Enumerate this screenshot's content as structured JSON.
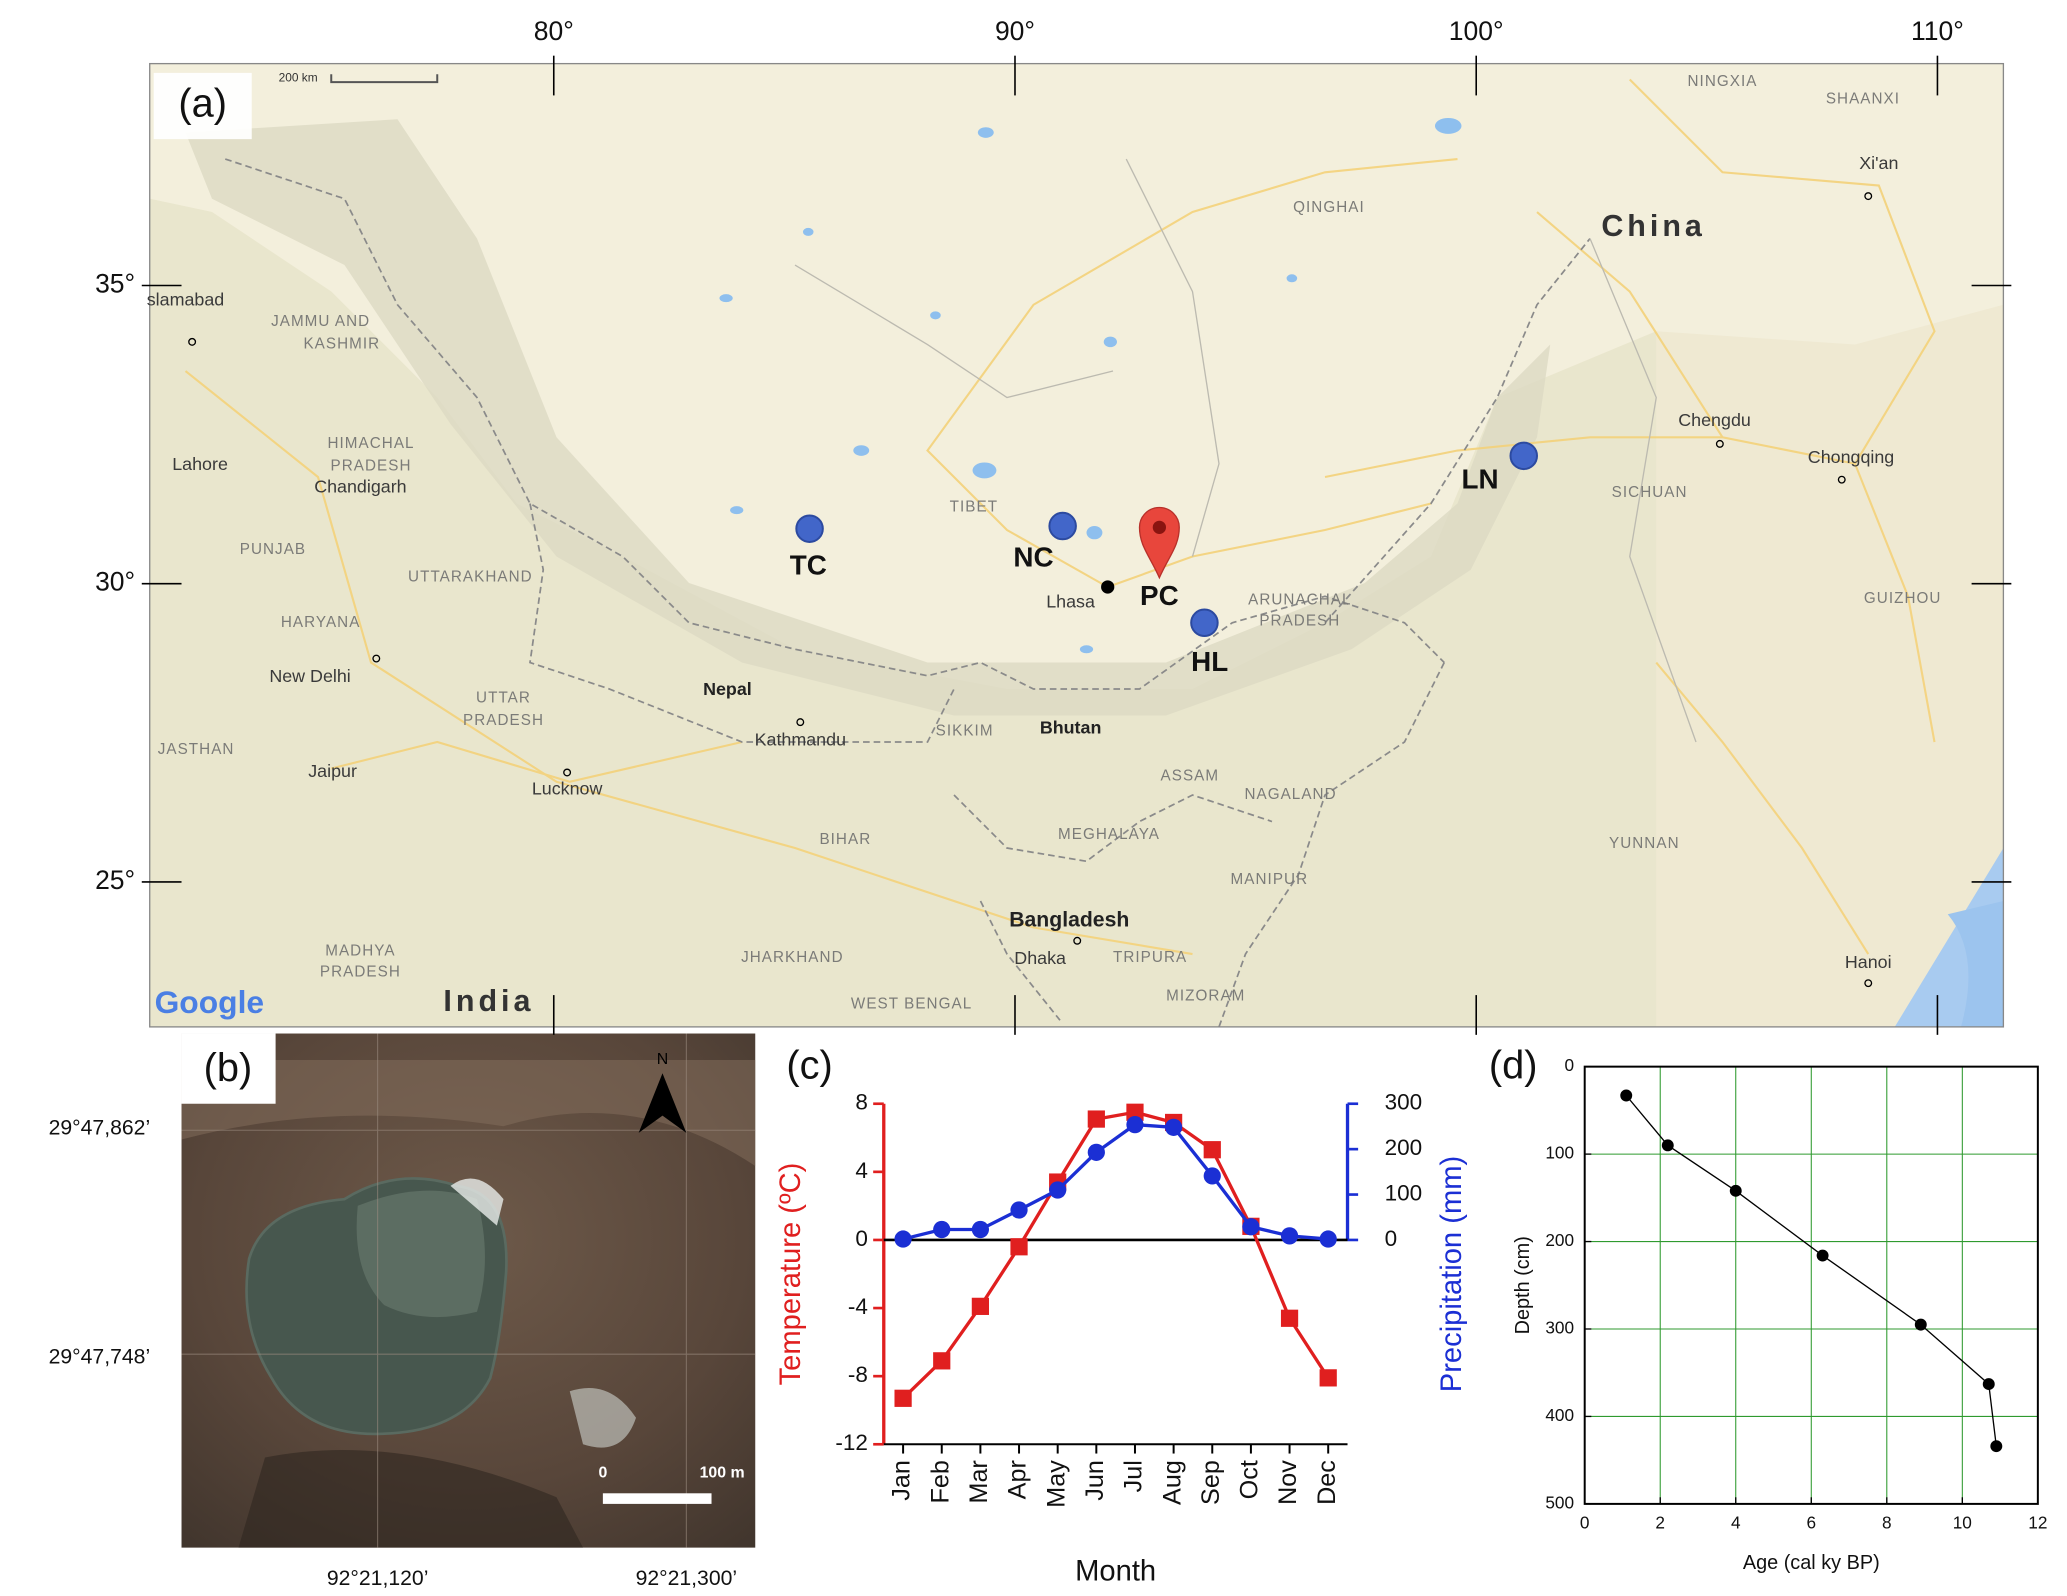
{
  "map_a": {
    "panel_label": "(a)",
    "scale_label": "200 km",
    "attribution": "Google",
    "xlim": [
      71.24,
      111.43
    ],
    "ylim": [
      22.57,
      38.72
    ],
    "xticks": [
      {
        "value": 80,
        "label": "80°"
      },
      {
        "value": 90,
        "label": "90°"
      },
      {
        "value": 100,
        "label": "100°"
      },
      {
        "value": 110,
        "label": "110°"
      }
    ],
    "yticks": [
      {
        "value": 25,
        "label": "25°"
      },
      {
        "value": 30,
        "label": "30°"
      },
      {
        "value": 35,
        "label": "35°"
      }
    ],
    "places": [
      "China",
      "India",
      "QINGHAI",
      "NINGXIA",
      "SHAANXI",
      "Xi'an",
      "TIBET",
      "Chengdu",
      "SICHUAN",
      "Chongqing",
      "GUIZHOU",
      "YUNNAN",
      "Hanoi",
      "slamabad",
      "JAMMU AND",
      "KASHMIR",
      "Lahore",
      "HIMACHAL",
      "PRADESH",
      "Chandigarh",
      "PUNJAB",
      "UTTARAKHAND",
      "HARYANA",
      "New Delhi",
      "UTTAR",
      "PRADESH",
      "JASTHAN",
      "Jaipur",
      "Lucknow",
      "Nepal",
      "Kathmandu",
      "SIKKIM",
      "Bhutan",
      "ARUNACHAL",
      "PRADESH",
      "ASSAM",
      "NAGALAND",
      "BIHAR",
      "MEGHALAYA",
      "MANIPUR",
      "Bangladesh",
      "Dhaka",
      "TRIPURA",
      "MIZORAM",
      "JHARKHAND",
      "WEST BENGAL",
      "MADHYA",
      "PRADESH",
      "Lhasa"
    ],
    "sites": [
      "TC",
      "NC",
      "PC",
      "HL",
      "LN"
    ]
  },
  "image_b": {
    "panel_label": "(b)",
    "north_label": "N",
    "scale_zero": "0",
    "scale_label": "100 m",
    "lat_labels": [
      "29°47,862’",
      "29°47,748’"
    ],
    "lon_labels": [
      "92°21,120’",
      "92°21,300’"
    ]
  },
  "chart_data": [
    {
      "type": "line",
      "panel_label": "(c)",
      "categories": [
        "Jan",
        "Feb",
        "Mar",
        "Apr",
        "May",
        "Jun",
        "Jul",
        "Aug",
        "Sep",
        "Oct",
        "Nov",
        "Dec"
      ],
      "x_label": "Month",
      "y_label": "Temperature (ºC)",
      "y2_label": "Precipitation (mm)",
      "ylim": [
        -12,
        8
      ],
      "yticks": [
        -12,
        -8,
        -4,
        0,
        4,
        8
      ],
      "y2lim": [
        -450,
        300
      ],
      "y2ticks": [
        0,
        100,
        200,
        300
      ],
      "series": [
        {
          "color": "#e01f1f",
          "marker": "square",
          "values": [
            -9.3,
            -7.1,
            -3.9,
            -0.4,
            3.4,
            7.1,
            7.5,
            6.9,
            5.3,
            0.8,
            -4.6,
            -8.1
          ]
        },
        {
          "color": "#1b2fd4",
          "marker": "circle",
          "axis": "y2",
          "values": [
            2,
            23,
            23,
            66,
            110,
            193,
            254,
            248,
            141,
            29,
            9,
            2
          ]
        }
      ]
    },
    {
      "type": "scatter",
      "panel_label": "(d)",
      "x_label": "Age (cal ky BP)",
      "y_label": "Depth (cm)",
      "xlim": [
        0,
        12
      ],
      "xticks": [
        0,
        2,
        4,
        6,
        8,
        10,
        12
      ],
      "ylim": [
        500,
        0
      ],
      "yticks": [
        0,
        100,
        200,
        300,
        400,
        500
      ],
      "grid": true,
      "grid_color": "#2f9a2f",
      "series": [
        {
          "color": "#000000",
          "x": [
            1.1,
            2.2,
            4.0,
            6.3,
            8.9,
            10.7,
            10.9
          ],
          "values": [
            33,
            90,
            142,
            216,
            295,
            363,
            434
          ]
        }
      ]
    }
  ]
}
